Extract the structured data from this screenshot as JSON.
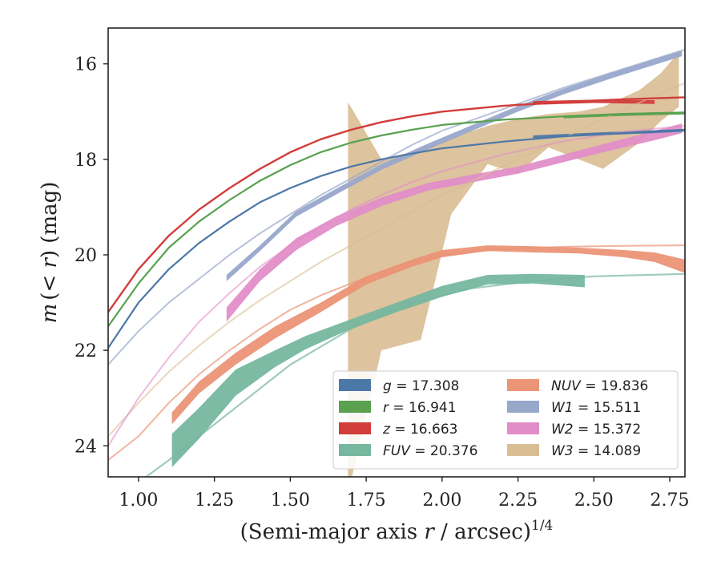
{
  "chart_data": {
    "type": "line",
    "title": "",
    "xlabel_main": "(Semi-major axis ",
    "xlabel_r": "r",
    "xlabel_units": " / arcsec)",
    "xlabel_sup": "1/4",
    "ylabel_m": "m",
    "ylabel_open": "(",
    "ylabel_lt": "< ",
    "ylabel_r": "r",
    "ylabel_close": ")",
    "ylabel_unit": " (mag)",
    "xlim": [
      0.9,
      2.8
    ],
    "ylim": [
      24.65,
      15.25
    ],
    "y_inverted": true,
    "grid": false,
    "legend_placement": "lower-right",
    "x_ticks": [
      "1.00",
      "1.25",
      "1.50",
      "1.75",
      "2.00",
      "2.25",
      "2.50",
      "2.75"
    ],
    "x_tick_values": [
      1.0,
      1.25,
      1.5,
      1.75,
      2.0,
      2.25,
      2.5,
      2.75
    ],
    "y_ticks": [
      "16",
      "18",
      "20",
      "22",
      "24"
    ],
    "y_tick_values": [
      16,
      18,
      20,
      22,
      24
    ],
    "series": [
      {
        "name": "g = 17.308",
        "legend_var": "g",
        "legend_val": "17.308",
        "legend_italic": false,
        "color": "#4c78a8",
        "model": [
          [
            0.9,
            21.95
          ],
          [
            1.0,
            21.0
          ],
          [
            1.1,
            20.3
          ],
          [
            1.2,
            19.75
          ],
          [
            1.3,
            19.3
          ],
          [
            1.4,
            18.9
          ],
          [
            1.5,
            18.6
          ],
          [
            1.6,
            18.35
          ],
          [
            1.7,
            18.15
          ],
          [
            1.8,
            18.0
          ],
          [
            1.9,
            17.88
          ],
          [
            2.0,
            17.77
          ],
          [
            2.2,
            17.63
          ],
          [
            2.4,
            17.52
          ],
          [
            2.6,
            17.45
          ],
          [
            2.8,
            17.38
          ]
        ],
        "model_width": 2.2,
        "model_opacity": 1.0,
        "data_band": [
          [
            2.3,
            17.5,
            17.56
          ],
          [
            2.5,
            17.44,
            17.5
          ],
          [
            2.7,
            17.39,
            17.45
          ],
          [
            2.8,
            17.36,
            17.42
          ]
        ]
      },
      {
        "name": "r = 16.941",
        "legend_var": "r",
        "legend_val": "16.941",
        "legend_italic": false,
        "color": "#59a14f",
        "model": [
          [
            0.9,
            21.5
          ],
          [
            1.0,
            20.6
          ],
          [
            1.1,
            19.85
          ],
          [
            1.2,
            19.3
          ],
          [
            1.3,
            18.85
          ],
          [
            1.4,
            18.45
          ],
          [
            1.5,
            18.12
          ],
          [
            1.6,
            17.85
          ],
          [
            1.7,
            17.65
          ],
          [
            1.8,
            17.5
          ],
          [
            1.9,
            17.38
          ],
          [
            2.0,
            17.28
          ],
          [
            2.2,
            17.17
          ],
          [
            2.4,
            17.1
          ],
          [
            2.6,
            17.05
          ],
          [
            2.8,
            17.02
          ]
        ],
        "model_width": 2.2,
        "model_opacity": 1.0,
        "data_band": [
          [
            2.4,
            17.08,
            17.14
          ],
          [
            2.6,
            17.03,
            17.09
          ],
          [
            2.8,
            17.0,
            17.06
          ]
        ]
      },
      {
        "name": "z = 16.663",
        "legend_var": "z",
        "legend_val": "16.663",
        "legend_italic": false,
        "color": "#d13d3b",
        "model": [
          [
            0.9,
            21.2
          ],
          [
            1.0,
            20.3
          ],
          [
            1.1,
            19.6
          ],
          [
            1.2,
            19.05
          ],
          [
            1.3,
            18.6
          ],
          [
            1.4,
            18.2
          ],
          [
            1.5,
            17.85
          ],
          [
            1.6,
            17.58
          ],
          [
            1.7,
            17.38
          ],
          [
            1.8,
            17.22
          ],
          [
            1.9,
            17.1
          ],
          [
            2.0,
            17.0
          ],
          [
            2.2,
            16.88
          ],
          [
            2.4,
            16.8
          ],
          [
            2.6,
            16.74
          ],
          [
            2.8,
            16.7
          ]
        ],
        "model_width": 2.4,
        "model_opacity": 1.0,
        "data_band": [
          [
            2.3,
            16.78,
            16.86
          ],
          [
            2.5,
            16.75,
            16.82
          ],
          [
            2.7,
            16.76,
            16.84
          ]
        ]
      },
      {
        "name": "FUV = 20.376",
        "legend_var": "FUV",
        "legend_val": "20.376",
        "legend_italic": true,
        "color": "#76b7a0",
        "model": [
          [
            0.95,
            25.0
          ],
          [
            1.1,
            24.3
          ],
          [
            1.3,
            23.3
          ],
          [
            1.5,
            22.3
          ],
          [
            1.7,
            21.55
          ],
          [
            1.9,
            21.0
          ],
          [
            2.1,
            20.7
          ],
          [
            2.3,
            20.55
          ],
          [
            2.5,
            20.45
          ],
          [
            2.8,
            20.4
          ]
        ],
        "model_width": 2.2,
        "model_opacity": 0.7,
        "data_band": [
          [
            1.11,
            23.75,
            24.45
          ],
          [
            1.2,
            23.2,
            23.85
          ],
          [
            1.32,
            22.4,
            22.95
          ],
          [
            1.45,
            22.0,
            22.35
          ],
          [
            1.55,
            21.7,
            21.98
          ],
          [
            1.7,
            21.35,
            21.55
          ],
          [
            1.85,
            21.0,
            21.2
          ],
          [
            2.0,
            20.65,
            20.88
          ],
          [
            2.15,
            20.42,
            20.62
          ],
          [
            2.3,
            20.4,
            20.6
          ],
          [
            2.47,
            20.42,
            20.68
          ]
        ]
      },
      {
        "name": "NUV = 19.836",
        "legend_var": "NUV",
        "legend_val": "19.836",
        "legend_italic": true,
        "color": "#eb9476",
        "model": [
          [
            0.9,
            24.3
          ],
          [
            1.0,
            23.8
          ],
          [
            1.1,
            23.1
          ],
          [
            1.2,
            22.5
          ],
          [
            1.3,
            22.0
          ],
          [
            1.4,
            21.55
          ],
          [
            1.5,
            21.15
          ],
          [
            1.6,
            20.85
          ],
          [
            1.7,
            20.6
          ],
          [
            1.8,
            20.35
          ],
          [
            1.9,
            20.15
          ],
          [
            2.0,
            20.0
          ],
          [
            2.2,
            19.88
          ],
          [
            2.4,
            19.83
          ],
          [
            2.6,
            19.81
          ],
          [
            2.8,
            19.8
          ]
        ],
        "model_width": 2.0,
        "model_opacity": 0.7,
        "data_band": [
          [
            1.11,
            23.3,
            23.55
          ],
          [
            1.2,
            22.65,
            22.9
          ],
          [
            1.32,
            22.05,
            22.3
          ],
          [
            1.45,
            21.5,
            21.75
          ],
          [
            1.6,
            21.0,
            21.2
          ],
          [
            1.75,
            20.45,
            20.62
          ],
          [
            1.9,
            20.1,
            20.25
          ],
          [
            2.0,
            19.9,
            20.05
          ],
          [
            2.15,
            19.8,
            19.92
          ],
          [
            2.3,
            19.82,
            19.95
          ],
          [
            2.45,
            19.85,
            19.97
          ],
          [
            2.6,
            19.9,
            20.05
          ],
          [
            2.7,
            19.95,
            20.15
          ],
          [
            2.8,
            20.1,
            20.38
          ]
        ]
      },
      {
        "name": "W1 = 15.511",
        "legend_var": "W1",
        "legend_val": "15.511",
        "legend_italic": true,
        "color": "#98a8cb",
        "model": [
          [
            0.9,
            22.3
          ],
          [
            1.0,
            21.6
          ],
          [
            1.1,
            21.0
          ],
          [
            1.2,
            20.5
          ],
          [
            1.3,
            20.0
          ],
          [
            1.4,
            19.55
          ],
          [
            1.5,
            19.15
          ],
          [
            1.6,
            18.75
          ],
          [
            1.7,
            18.4
          ],
          [
            1.8,
            18.05
          ],
          [
            1.9,
            17.7
          ],
          [
            2.0,
            17.4
          ],
          [
            2.2,
            16.95
          ],
          [
            2.4,
            16.5
          ],
          [
            2.6,
            16.1
          ],
          [
            2.8,
            15.7
          ]
        ],
        "model_width": 2.0,
        "model_opacity": 0.7,
        "data_band": [
          [
            1.29,
            20.42,
            20.55
          ],
          [
            1.4,
            19.8,
            19.92
          ],
          [
            1.52,
            19.08,
            19.2
          ],
          [
            1.65,
            18.62,
            18.74
          ],
          [
            1.8,
            18.1,
            18.22
          ],
          [
            1.95,
            17.68,
            17.8
          ],
          [
            2.1,
            17.28,
            17.4
          ],
          [
            2.25,
            16.88,
            17.0
          ],
          [
            2.4,
            16.52,
            16.64
          ],
          [
            2.55,
            16.2,
            16.32
          ],
          [
            2.7,
            15.9,
            16.02
          ],
          [
            2.79,
            15.72,
            15.84
          ]
        ]
      },
      {
        "name": "W2 = 15.372",
        "legend_var": "W2",
        "legend_val": "15.372",
        "legend_italic": true,
        "color": "#e18ec8",
        "model": [
          [
            0.9,
            24.0
          ],
          [
            1.0,
            23.0
          ],
          [
            1.1,
            22.15
          ],
          [
            1.2,
            21.4
          ],
          [
            1.3,
            20.8
          ],
          [
            1.4,
            20.25
          ],
          [
            1.5,
            19.8
          ],
          [
            1.6,
            19.4
          ],
          [
            1.7,
            19.05
          ],
          [
            1.8,
            18.75
          ],
          [
            1.9,
            18.48
          ],
          [
            2.0,
            18.25
          ],
          [
            2.2,
            17.9
          ],
          [
            2.4,
            17.62
          ],
          [
            2.6,
            17.42
          ],
          [
            2.8,
            17.3
          ]
        ],
        "model_width": 2.0,
        "model_opacity": 0.6,
        "data_band": [
          [
            1.29,
            21.1,
            21.4
          ],
          [
            1.4,
            20.3,
            20.55
          ],
          [
            1.52,
            19.65,
            19.9
          ],
          [
            1.65,
            19.2,
            19.4
          ],
          [
            1.8,
            18.8,
            18.98
          ],
          [
            1.95,
            18.5,
            18.66
          ],
          [
            2.1,
            18.32,
            18.48
          ],
          [
            2.25,
            18.15,
            18.3
          ],
          [
            2.4,
            17.9,
            18.06
          ],
          [
            2.55,
            17.65,
            17.82
          ],
          [
            2.7,
            17.4,
            17.6
          ],
          [
            2.79,
            17.25,
            17.45
          ]
        ]
      },
      {
        "name": "W3 = 14.089",
        "legend_var": "W3",
        "legend_val": "14.089",
        "legend_italic": true,
        "color": "#d9bd93",
        "model": [
          [
            0.9,
            23.8
          ],
          [
            1.0,
            23.1
          ],
          [
            1.1,
            22.45
          ],
          [
            1.2,
            21.9
          ],
          [
            1.3,
            21.4
          ],
          [
            1.4,
            20.95
          ],
          [
            1.5,
            20.55
          ],
          [
            1.6,
            20.15
          ],
          [
            1.7,
            19.8
          ],
          [
            1.8,
            19.45
          ],
          [
            1.9,
            19.1
          ],
          [
            2.0,
            18.75
          ],
          [
            2.2,
            18.15
          ],
          [
            2.4,
            17.55
          ],
          [
            2.6,
            16.95
          ],
          [
            2.8,
            16.4
          ]
        ],
        "model_width": 2.0,
        "model_opacity": 0.6,
        "data_band": [
          [
            1.69,
            16.8,
            25.0
          ],
          [
            1.8,
            18.0,
            22.0
          ],
          [
            1.93,
            17.8,
            21.78
          ],
          [
            2.03,
            17.55,
            19.15
          ],
          [
            2.15,
            17.3,
            18.1
          ],
          [
            2.25,
            17.15,
            18.3
          ],
          [
            2.35,
            17.05,
            17.75
          ],
          [
            2.45,
            17.0,
            18.0
          ],
          [
            2.53,
            16.9,
            18.2
          ],
          [
            2.65,
            16.55,
            17.65
          ],
          [
            2.72,
            16.2,
            17.2
          ],
          [
            2.78,
            15.75,
            16.9
          ]
        ]
      }
    ]
  }
}
